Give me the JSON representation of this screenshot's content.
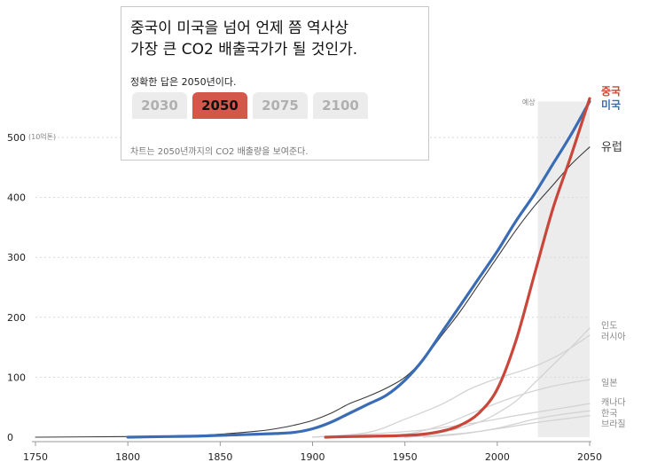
{
  "question": {
    "title_line1": "중국이 미국을 넘어 언제 쯤 역사상",
    "title_line2": "가장 큰 CO2 배출국가가 될 것인가.",
    "answer_text": "정확한 답은 2050년이다.",
    "options": [
      "2030",
      "2050",
      "2075",
      "2100"
    ],
    "selected": "2050",
    "caption": "차트는  2050년까지의 CO2 배출량을 보여준다."
  },
  "colors": {
    "china": "#c9473a",
    "usa": "#3a6cb6",
    "europe": "#3a3a3a",
    "others": "#d3d3d3",
    "forecast_band": "#ececec"
  },
  "chart_data": {
    "type": "line",
    "title": "",
    "xlabel": "",
    "ylabel": "",
    "y_unit": "(10억톤)",
    "xlim": [
      1750,
      2050
    ],
    "ylim": [
      0,
      560
    ],
    "x_ticks": [
      1750,
      1800,
      1850,
      1900,
      1950,
      2000,
      2050
    ],
    "y_ticks": [
      0,
      100,
      200,
      300,
      400,
      500
    ],
    "forecast": {
      "label": "예상",
      "x_start": 2022,
      "x_end": 2050
    },
    "grid": true,
    "series": [
      {
        "name": "유럽",
        "key": "europe",
        "weight": "normal",
        "points": [
          [
            1750,
            0
          ],
          [
            1800,
            1
          ],
          [
            1830,
            2
          ],
          [
            1850,
            5
          ],
          [
            1870,
            10
          ],
          [
            1880,
            14
          ],
          [
            1890,
            20
          ],
          [
            1900,
            28
          ],
          [
            1910,
            40
          ],
          [
            1920,
            56
          ],
          [
            1930,
            68
          ],
          [
            1940,
            82
          ],
          [
            1950,
            100
          ],
          [
            1960,
            130
          ],
          [
            1970,
            170
          ],
          [
            1980,
            210
          ],
          [
            1990,
            255
          ],
          [
            2000,
            300
          ],
          [
            2010,
            345
          ],
          [
            2020,
            385
          ],
          [
            2030,
            420
          ],
          [
            2040,
            455
          ],
          [
            2050,
            484
          ]
        ]
      },
      {
        "name": "미국",
        "key": "usa",
        "weight": "bold",
        "points": [
          [
            1800,
            0
          ],
          [
            1820,
            1
          ],
          [
            1840,
            2
          ],
          [
            1860,
            4
          ],
          [
            1870,
            5
          ],
          [
            1880,
            6
          ],
          [
            1890,
            8
          ],
          [
            1900,
            14
          ],
          [
            1910,
            25
          ],
          [
            1920,
            40
          ],
          [
            1930,
            55
          ],
          [
            1940,
            70
          ],
          [
            1950,
            95
          ],
          [
            1960,
            130
          ],
          [
            1970,
            175
          ],
          [
            1980,
            220
          ],
          [
            1990,
            265
          ],
          [
            2000,
            310
          ],
          [
            2010,
            360
          ],
          [
            2020,
            405
          ],
          [
            2030,
            455
          ],
          [
            2040,
            505
          ],
          [
            2050,
            560
          ]
        ]
      },
      {
        "name": "중국",
        "key": "china",
        "weight": "bold",
        "points": [
          [
            1907,
            0
          ],
          [
            1920,
            1
          ],
          [
            1940,
            2
          ],
          [
            1950,
            3
          ],
          [
            1960,
            5
          ],
          [
            1970,
            10
          ],
          [
            1980,
            20
          ],
          [
            1990,
            40
          ],
          [
            2000,
            80
          ],
          [
            2010,
            160
          ],
          [
            2020,
            270
          ],
          [
            2030,
            380
          ],
          [
            2040,
            470
          ],
          [
            2050,
            565
          ]
        ]
      },
      {
        "name": "인도",
        "key": "others",
        "weight": "light",
        "points": [
          [
            1950,
            0
          ],
          [
            1970,
            8
          ],
          [
            1990,
            25
          ],
          [
            2000,
            40
          ],
          [
            2010,
            60
          ],
          [
            2020,
            90
          ],
          [
            2030,
            120
          ],
          [
            2040,
            150
          ],
          [
            2050,
            182
          ]
        ]
      },
      {
        "name": "러시아",
        "key": "others",
        "weight": "light",
        "points": [
          [
            1900,
            0
          ],
          [
            1930,
            8
          ],
          [
            1950,
            30
          ],
          [
            1970,
            55
          ],
          [
            1985,
            80
          ],
          [
            2000,
            98
          ],
          [
            2020,
            118
          ],
          [
            2035,
            140
          ],
          [
            2050,
            170
          ]
        ]
      },
      {
        "name": "일본",
        "key": "others",
        "weight": "light",
        "points": [
          [
            1920,
            0
          ],
          [
            1950,
            5
          ],
          [
            1970,
            20
          ],
          [
            1990,
            45
          ],
          [
            2010,
            68
          ],
          [
            2030,
            85
          ],
          [
            2050,
            96
          ]
        ]
      },
      {
        "name": "캐나다",
        "key": "others",
        "weight": "light",
        "points": [
          [
            1900,
            0
          ],
          [
            1930,
            5
          ],
          [
            1960,
            12
          ],
          [
            1990,
            25
          ],
          [
            2010,
            36
          ],
          [
            2030,
            46
          ],
          [
            2050,
            56
          ]
        ]
      },
      {
        "name": "한국",
        "key": "others",
        "weight": "light",
        "points": [
          [
            1960,
            0
          ],
          [
            1980,
            5
          ],
          [
            2000,
            15
          ],
          [
            2020,
            30
          ],
          [
            2035,
            38
          ],
          [
            2050,
            44
          ]
        ]
      },
      {
        "name": "브라질",
        "key": "others",
        "weight": "light",
        "points": [
          [
            1950,
            0
          ],
          [
            1980,
            6
          ],
          [
            2000,
            14
          ],
          [
            2020,
            24
          ],
          [
            2035,
            30
          ],
          [
            2050,
            36
          ]
        ]
      }
    ],
    "labels": [
      {
        "name": "중국",
        "key": "china",
        "y": 577,
        "bold": true
      },
      {
        "name": "미국",
        "key": "usa",
        "y": 554,
        "bold": true
      },
      {
        "name": "유럽",
        "key": "europe",
        "y": 484,
        "bold": false
      },
      {
        "name": "인도",
        "key": "others",
        "y": 187,
        "bold": false
      },
      {
        "name": "러시아",
        "key": "others",
        "y": 169,
        "bold": false
      },
      {
        "name": "일본",
        "key": "others",
        "y": 92,
        "bold": false
      },
      {
        "name": "캐나다",
        "key": "others",
        "y": 59,
        "bold": false
      },
      {
        "name": "한국",
        "key": "others",
        "y": 41,
        "bold": false
      },
      {
        "name": "브라질",
        "key": "others",
        "y": 23,
        "bold": false
      }
    ]
  }
}
